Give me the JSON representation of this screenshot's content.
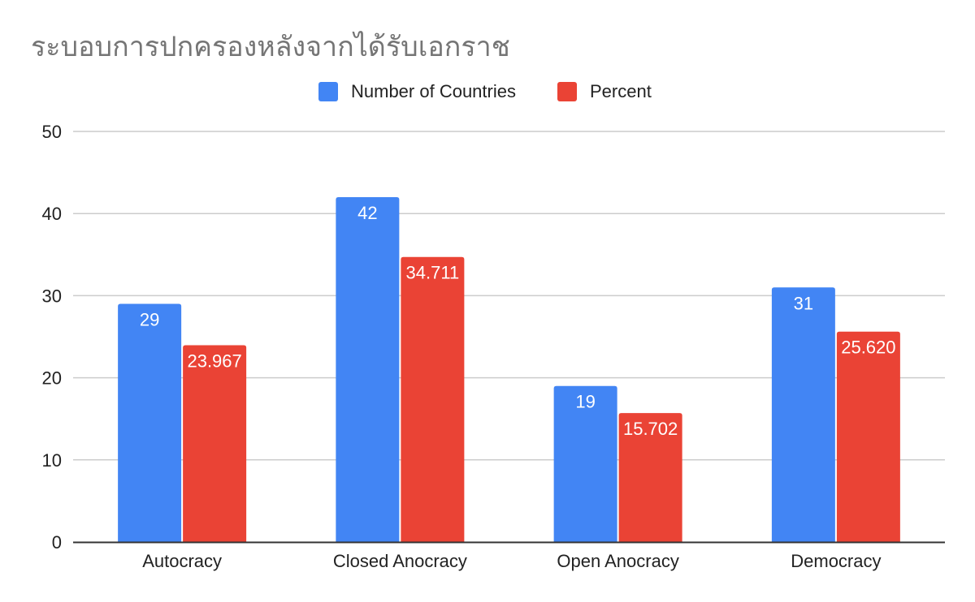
{
  "chart_data": {
    "type": "bar",
    "title": "ระบอบการปกครองหลังจากได้รับเอกราช",
    "categories": [
      "Autocracy",
      "Closed Anocracy",
      "Open Anocracy",
      "Democracy"
    ],
    "series": [
      {
        "name": "Number of Countries",
        "color": "#4285f4",
        "values": [
          29,
          42,
          19,
          31
        ],
        "labels": [
          "29",
          "42",
          "19",
          "31"
        ]
      },
      {
        "name": "Percent",
        "color": "#ea4335",
        "values": [
          23.967,
          34.711,
          15.702,
          25.62
        ],
        "labels": [
          "23.967",
          "34.711",
          "15.702",
          "25.620"
        ]
      }
    ],
    "yticks": [
      "0",
      "10",
      "20",
      "30",
      "40",
      "50"
    ],
    "ylim": [
      0,
      50
    ],
    "grid": true,
    "legend_position": "top-center"
  }
}
